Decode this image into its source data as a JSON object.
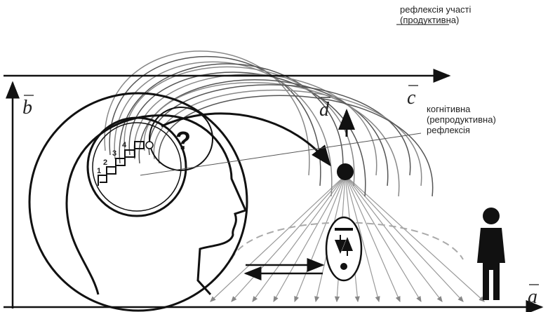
{
  "labels": {
    "participation_1": "рефлексія участі",
    "participation_2": "(продуктивна)",
    "cognitive_1": "когнітивна",
    "cognitive_2": "(репродуктивна)",
    "cognitive_3": "рефлексія"
  },
  "vectors": {
    "a": "a",
    "b": "b",
    "c": "c",
    "d": "d"
  },
  "steps": [
    "1",
    "2",
    "3",
    "4"
  ],
  "question": "?"
}
